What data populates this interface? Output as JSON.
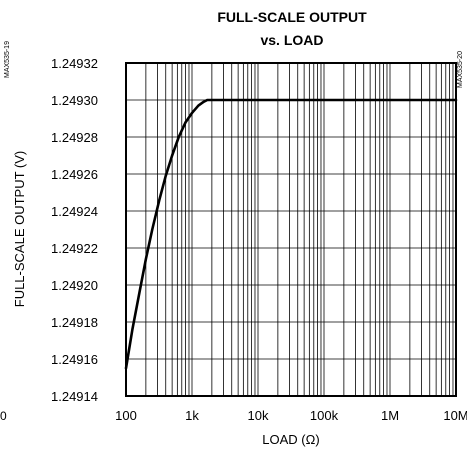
{
  "chart_data": {
    "type": "line",
    "title_line1": "FULL-SCALE OUTPUT",
    "title_line2": "vs. LOAD",
    "xlabel": "LOAD (Ω)",
    "ylabel": "FULL-SCALE OUTPUT (V)",
    "x_scale": "log",
    "xlim": [
      100,
      10000000
    ],
    "ylim": [
      1.24914,
      1.24932
    ],
    "x_ticks": [
      {
        "value": 100,
        "label": "100"
      },
      {
        "value": 1000,
        "label": "1k"
      },
      {
        "value": 10000,
        "label": "10k"
      },
      {
        "value": 100000,
        "label": "100k"
      },
      {
        "value": 1000000,
        "label": "1M"
      },
      {
        "value": 10000000,
        "label": "10M"
      }
    ],
    "y_ticks": [
      "1.24932",
      "1.24930",
      "1.24928",
      "1.24926",
      "1.24924",
      "1.24922",
      "1.24920",
      "1.24918",
      "1.24916",
      "1.24914"
    ],
    "grid": true,
    "series": [
      {
        "x": [
          100,
          125,
          160,
          200,
          250,
          320,
          400,
          500,
          630,
          800,
          1000,
          1250,
          1500,
          1700,
          1850,
          2000,
          2500,
          5000,
          10000,
          100000,
          1000000,
          10000000
        ],
        "y": [
          1.249155,
          1.249176,
          1.249196,
          1.249214,
          1.24923,
          1.249246,
          1.249259,
          1.24927,
          1.24928,
          1.249288,
          1.249293,
          1.249297,
          1.249299,
          1.2493,
          1.2493,
          1.2493,
          1.2493,
          1.2493,
          1.2493,
          1.2493,
          1.2493,
          1.2493
        ]
      }
    ]
  },
  "side_code_left": "MAX535-19",
  "side_code_right": "MAX535-20",
  "edge_left_text": "0",
  "colors": {
    "line": "#000000",
    "grid": "#000000",
    "background": "#ffffff"
  }
}
